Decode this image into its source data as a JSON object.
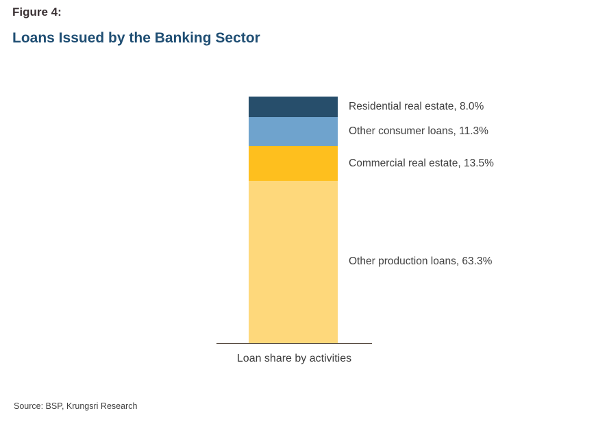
{
  "page": {
    "figure_label": "Figure 4:",
    "title": "Loans Issued by the Banking Sector",
    "source": "Source: BSP, Krungsri Research"
  },
  "chart_data": {
    "type": "bar",
    "subtype": "stacked-single-column",
    "title": "Loans Issued by the Banking Sector",
    "xlabel": "Loan share by activities",
    "ylabel": "",
    "unit": "%",
    "categories": [
      "Loan share by activities"
    ],
    "series": [
      {
        "name": "Residential real estate",
        "values": [
          8.0
        ],
        "label": "Residential real estate, 8.0%",
        "color": "#274e6b"
      },
      {
        "name": "Other consumer loans",
        "values": [
          11.3
        ],
        "label": "Other consumer loans, 11.3%",
        "color": "#6fa3cd"
      },
      {
        "name": "Commercial real estate",
        "values": [
          13.5
        ],
        "label": "Commercial real estate, 13.5%",
        "color": "#febf1e"
      },
      {
        "name": "Other production loans",
        "values": [
          63.3
        ],
        "label": "Other production loans, 63.3%",
        "color": "#fed87b"
      }
    ],
    "grid": false,
    "legend": "data-labels-right-of-bar",
    "ylim": [
      0,
      100
    ]
  },
  "colors": {
    "figure_label_text": "#3a3134",
    "title_text": "#1f4e73",
    "label_text": "#404040",
    "axis_line": "#55493f",
    "background": "#ffffff"
  }
}
